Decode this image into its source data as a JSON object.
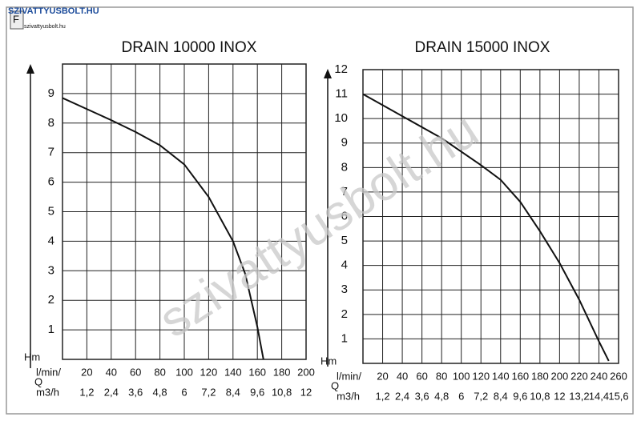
{
  "logo": {
    "brand": "SZIVATTYUSBOLT.HU",
    "tagline": "szivattyusbolt.hu"
  },
  "watermark": "szivattyusbolt.hu",
  "chart_data": [
    {
      "type": "line",
      "title": "DRAIN 10000 INOX",
      "y_label": "Hm",
      "q_label": "Q",
      "x_label": "l/min/",
      "x2_label": "m3/h",
      "x": [
        0,
        40,
        60,
        80,
        100,
        120,
        140,
        150,
        160,
        165
      ],
      "series": [
        {
          "color": "#111111",
          "values": [
            8.85,
            8.1,
            7.7,
            7.25,
            6.6,
            5.5,
            4.0,
            2.9,
            1.1,
            0
          ]
        }
      ],
      "xlim": [
        0,
        200
      ],
      "xticks": [
        20,
        40,
        60,
        80,
        100,
        120,
        140,
        160,
        180,
        200
      ],
      "x2lim": [
        0,
        12
      ],
      "x2ticks": [
        {
          "value": 1.2,
          "label": "1,2"
        },
        {
          "value": 2.4,
          "label": "2,4"
        },
        {
          "value": 3.6,
          "label": "3,6"
        },
        {
          "value": 4.8,
          "label": "4,8"
        },
        6,
        {
          "value": 7.2,
          "label": "7,2"
        },
        {
          "value": 8.4,
          "label": "8,4"
        },
        {
          "value": 9.6,
          "label": "9,6"
        },
        {
          "value": 10.8,
          "label": "10,8"
        },
        12
      ],
      "ylim": [
        0,
        10
      ],
      "yticks": [
        1,
        2,
        3,
        4,
        5,
        6,
        7,
        8,
        9
      ],
      "grid": true
    },
    {
      "type": "line",
      "title": "DRAIN 15000 INOX",
      "y_label": "Hm",
      "q_label": "Q",
      "x_label": "l/min/",
      "x2_label": "m3/h",
      "x": [
        0,
        40,
        80,
        120,
        140,
        160,
        180,
        200,
        220,
        240,
        250
      ],
      "series": [
        {
          "color": "#111111",
          "values": [
            11.0,
            10.1,
            9.2,
            8.1,
            7.5,
            6.6,
            5.4,
            4.1,
            2.6,
            0.9,
            0.1
          ]
        }
      ],
      "xlim": [
        0,
        260
      ],
      "xticks": [
        20,
        40,
        60,
        80,
        100,
        120,
        140,
        160,
        180,
        200,
        220,
        240,
        260
      ],
      "x2lim": [
        0,
        15.6
      ],
      "x2ticks": [
        {
          "value": 1.2,
          "label": "1,2"
        },
        {
          "value": 2.4,
          "label": "2,4"
        },
        {
          "value": 3.6,
          "label": "3,6"
        },
        {
          "value": 4.8,
          "label": "4,8"
        },
        6,
        {
          "value": 7.2,
          "label": "7,2"
        },
        {
          "value": 8.4,
          "label": "8,4"
        },
        {
          "value": 9.6,
          "label": "9,6"
        },
        {
          "value": 10.8,
          "label": "10,8"
        },
        12,
        {
          "value": 13.2,
          "label": "13,2"
        },
        {
          "value": 14.4,
          "label": "14,4"
        },
        {
          "value": 15.6,
          "label": "15,6"
        }
      ],
      "ylim": [
        0,
        12
      ],
      "yticks": [
        1,
        2,
        3,
        4,
        5,
        6,
        7,
        8,
        9,
        10,
        11,
        12
      ],
      "grid": true
    }
  ]
}
